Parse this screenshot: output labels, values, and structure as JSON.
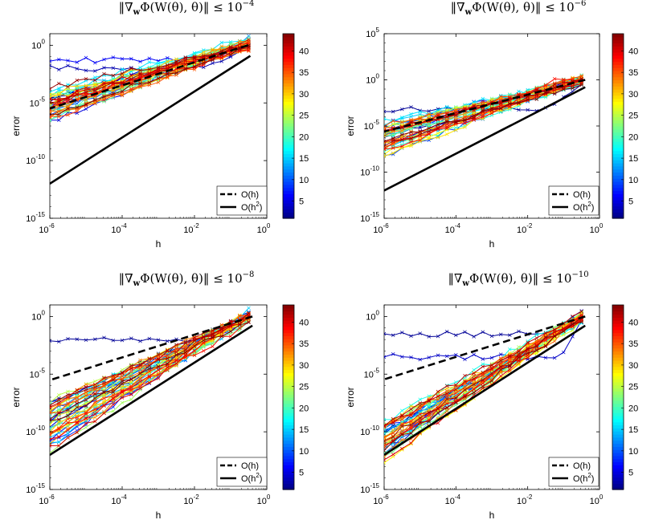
{
  "chart_data": [
    {
      "type": "line",
      "title": {
        "prefix": "‖∇",
        "sub": "w",
        "mid": "Φ(W(θ), θ)‖ ≤ 10",
        "exp": "−4"
      },
      "xlabel": "h",
      "ylabel": "error",
      "xscale": "log",
      "yscale": "log",
      "xlim": [
        1e-06,
        1
      ],
      "ylim": [
        1e-15,
        10
      ],
      "xticks": [
        {
          "base": "10",
          "exp": "-6",
          "v": 1e-06
        },
        {
          "base": "10",
          "exp": "-4",
          "v": 0.0001
        },
        {
          "base": "10",
          "exp": "-2",
          "v": 0.01
        },
        {
          "base": "10",
          "exp": "0",
          "v": 1
        }
      ],
      "yticks": [
        {
          "base": "10",
          "exp": "-15",
          "v": 1e-15
        },
        {
          "base": "10",
          "exp": "-10",
          "v": 1e-10
        },
        {
          "base": "10",
          "exp": "-5",
          "v": 1e-05
        },
        {
          "base": "10",
          "exp": "0",
          "v": 1
        }
      ],
      "colorbar": {
        "range": [
          1,
          44
        ],
        "ticks": [
          "5",
          "10",
          "15",
          "20",
          "25",
          "30",
          "35",
          "40"
        ],
        "tickvals": [
          5,
          10,
          15,
          20,
          25,
          30,
          35,
          40
        ]
      },
      "legend": {
        "position": "bottom-right",
        "entries": [
          {
            "label": "O(h)",
            "style": "dashed"
          },
          {
            "label": "O(h",
            "sup": "2",
            "close": ")",
            "style": "solid"
          }
        ]
      },
      "reference": {
        "O_h": {
          "x": [
            0.3,
            1e-06
          ],
          "y": [
            1.0,
            3.3e-06
          ]
        },
        "O_h2": {
          "x": [
            0.35,
            1e-06
          ],
          "y": [
            0.12,
            1e-12
          ]
        }
      },
      "series_summary": {
        "count": 44,
        "start_logerr_at_h1e-6": [
          -4.9,
          -4.7,
          -4.5,
          -4.2,
          -6.2,
          -5.8,
          -5.4,
          -5.0,
          -6.4,
          -6.0,
          -5.6,
          -5.2,
          -4.8
        ],
        "end_logerr_at_h0.3": [
          0.2,
          0.0,
          -0.1,
          0.3
        ],
        "outliers": [
          {
            "color_index": 3,
            "logerr_at_h1e-6": -2.0
          },
          {
            "color_index": 6,
            "logerr_at_h1e-6": -1.3
          }
        ]
      }
    },
    {
      "type": "line",
      "title": {
        "prefix": "‖∇",
        "sub": "w",
        "mid": "Φ(W(θ), θ)‖ ≤ 10",
        "exp": "−6"
      },
      "xlabel": "h",
      "ylabel": "error",
      "xscale": "log",
      "yscale": "log",
      "xlim": [
        1e-06,
        1
      ],
      "ylim": [
        1e-15,
        100000.0
      ],
      "xticks": [
        {
          "base": "10",
          "exp": "-6",
          "v": 1e-06
        },
        {
          "base": "10",
          "exp": "-4",
          "v": 0.0001
        },
        {
          "base": "10",
          "exp": "-2",
          "v": 0.01
        },
        {
          "base": "10",
          "exp": "0",
          "v": 1
        }
      ],
      "yticks": [
        {
          "base": "10",
          "exp": "-15",
          "v": 1e-15
        },
        {
          "base": "10",
          "exp": "-10",
          "v": 1e-10
        },
        {
          "base": "10",
          "exp": "-5",
          "v": 1e-05
        },
        {
          "base": "10",
          "exp": "0",
          "v": 1
        },
        {
          "base": "10",
          "exp": "5",
          "v": 100000.0
        }
      ],
      "colorbar": {
        "range": [
          1,
          44
        ],
        "ticks": [
          "5",
          "10",
          "15",
          "20",
          "25",
          "30",
          "35",
          "40"
        ],
        "tickvals": [
          5,
          10,
          15,
          20,
          25,
          30,
          35,
          40
        ]
      },
      "legend": {
        "position": "bottom-right",
        "entries": [
          {
            "label": "O(h)",
            "style": "dashed"
          },
          {
            "label": "O(h",
            "sup": "2",
            "close": ")",
            "style": "solid"
          }
        ]
      },
      "reference": {
        "O_h": {
          "x": [
            0.4,
            1e-06
          ],
          "y": [
            1.0,
            2.5e-06
          ]
        },
        "O_h2": {
          "x": [
            0.4,
            1e-06
          ],
          "y": [
            0.16,
            1e-12
          ]
        }
      },
      "series_summary": {
        "count": 44,
        "start_logerr_at_h1e-6": [
          -5.8,
          -6.2,
          -6.6,
          -7.0,
          -5.2,
          -4.9,
          -6.5,
          -7.3,
          -8.2,
          -5.5
        ],
        "end_logerr_at_h0.4": [
          0.0,
          -0.2,
          0.1
        ],
        "outliers": [
          {
            "color_index": 2,
            "logerr_at_h1e-6": -3.2
          },
          {
            "color_index": 38,
            "peak_logerr": 1.0
          }
        ]
      }
    },
    {
      "type": "line",
      "title": {
        "prefix": "‖∇",
        "sub": "w",
        "mid": "Φ(W(θ), θ)‖ ≤ 10",
        "exp": "−8"
      },
      "xlabel": "h",
      "ylabel": "error",
      "xscale": "log",
      "yscale": "log",
      "xlim": [
        1e-06,
        1
      ],
      "ylim": [
        1e-15,
        10
      ],
      "xticks": [
        {
          "base": "10",
          "exp": "-6",
          "v": 1e-06
        },
        {
          "base": "10",
          "exp": "-4",
          "v": 0.0001
        },
        {
          "base": "10",
          "exp": "-2",
          "v": 0.01
        },
        {
          "base": "10",
          "exp": "0",
          "v": 1
        }
      ],
      "yticks": [
        {
          "base": "10",
          "exp": "-15",
          "v": 1e-15
        },
        {
          "base": "10",
          "exp": "-10",
          "v": 1e-10
        },
        {
          "base": "10",
          "exp": "-5",
          "v": 1e-05
        },
        {
          "base": "10",
          "exp": "0",
          "v": 1
        }
      ],
      "colorbar": {
        "range": [
          1,
          44
        ],
        "ticks": [
          "5",
          "10",
          "15",
          "20",
          "25",
          "30",
          "35",
          "40"
        ],
        "tickvals": [
          5,
          10,
          15,
          20,
          25,
          30,
          35,
          40
        ]
      },
      "legend": {
        "position": "bottom-right",
        "entries": [
          {
            "label": "O(h)",
            "style": "dashed"
          },
          {
            "label": "O(h",
            "sup": "2",
            "close": ")",
            "style": "solid"
          }
        ]
      },
      "reference": {
        "O_h": {
          "x": [
            0.4,
            1e-06
          ],
          "y": [
            1.0,
            3e-06
          ]
        },
        "O_h2": {
          "x": [
            0.4,
            1e-06
          ],
          "y": [
            0.16,
            1e-12
          ]
        }
      },
      "series_summary": {
        "count": 44,
        "start_logerr_at_h1e-6": [
          -7.5,
          -8.0,
          -8.5,
          -9.0,
          -9.5,
          -10.0,
          -10.8,
          -11.5
        ],
        "end_logerr_at_h0.4": [
          0.0,
          -0.3,
          0.2
        ],
        "outliers": [
          {
            "color_index": 2,
            "logerr_at_h1e-6": -2.0
          },
          {
            "color_index": 40,
            "peak_logerr": 0.8
          }
        ]
      }
    },
    {
      "type": "line",
      "title": {
        "prefix": "‖∇",
        "sub": "w",
        "mid": "Φ(W(θ), θ)‖ ≤ 10",
        "exp": "−10"
      },
      "xlabel": "h",
      "ylabel": "error",
      "xscale": "log",
      "yscale": "log",
      "xlim": [
        1e-06,
        1
      ],
      "ylim": [
        1e-15,
        10
      ],
      "xticks": [
        {
          "base": "10",
          "exp": "-6",
          "v": 1e-06
        },
        {
          "base": "10",
          "exp": "-4",
          "v": 0.0001
        },
        {
          "base": "10",
          "exp": "-2",
          "v": 0.01
        },
        {
          "base": "10",
          "exp": "0",
          "v": 1
        }
      ],
      "yticks": [
        {
          "base": "10",
          "exp": "-15",
          "v": 1e-15
        },
        {
          "base": "10",
          "exp": "-10",
          "v": 1e-10
        },
        {
          "base": "10",
          "exp": "-5",
          "v": 1e-05
        },
        {
          "base": "10",
          "exp": "0",
          "v": 1
        }
      ],
      "colorbar": {
        "range": [
          1,
          44
        ],
        "ticks": [
          "5",
          "10",
          "15",
          "20",
          "25",
          "30",
          "35",
          "40"
        ],
        "tickvals": [
          5,
          10,
          15,
          20,
          25,
          30,
          35,
          40
        ]
      },
      "legend": {
        "position": "bottom-right",
        "entries": [
          {
            "label": "O(h)",
            "style": "dashed"
          },
          {
            "label": "O(h",
            "sup": "2",
            "close": ")",
            "style": "solid"
          }
        ]
      },
      "reference": {
        "O_h": {
          "x": [
            0.4,
            1e-06
          ],
          "y": [
            1.0,
            3.5e-06
          ]
        },
        "O_h2": {
          "x": [
            0.4,
            1e-06
          ],
          "y": [
            0.16,
            1e-12
          ]
        }
      },
      "series_summary": {
        "count": 44,
        "start_logerr_at_h1e-6": [
          -10.5,
          -11.0,
          -11.5,
          -12.0,
          -10.0,
          -9.5
        ],
        "end_logerr_at_h0.4": [
          0.0,
          -0.2,
          0.1
        ],
        "outliers": [
          {
            "color_index": 2,
            "logerr_at_h1e-6": -1.5
          },
          {
            "color_index": 4,
            "logerr_at_h1e-6": -3.5
          }
        ]
      }
    }
  ]
}
